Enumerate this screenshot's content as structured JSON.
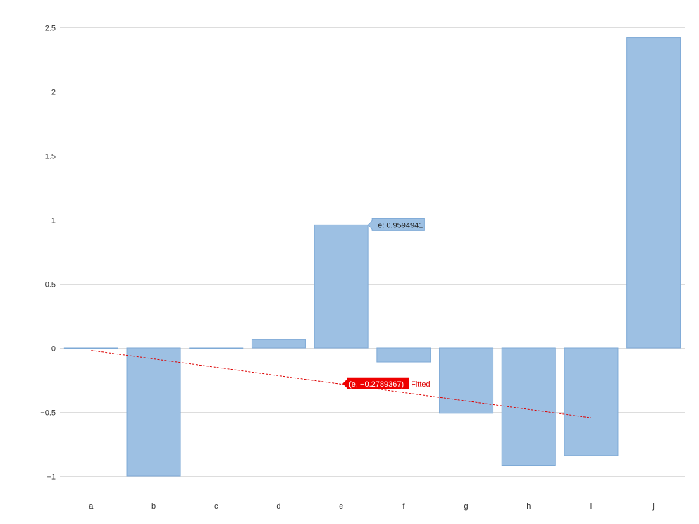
{
  "chart_data": {
    "type": "bar",
    "categories": [
      "a",
      "b",
      "c",
      "d",
      "e",
      "f",
      "g",
      "h",
      "i",
      "j"
    ],
    "values": [
      0.0,
      -1.0,
      0.0,
      0.065,
      0.9594941,
      -0.11,
      -0.51,
      -0.915,
      -0.84,
      2.42
    ],
    "ylim": [
      -1,
      2.5
    ],
    "yticks": [
      -1,
      -0.5,
      0,
      0.5,
      1,
      1.5,
      2,
      2.5
    ],
    "ytick_labels": [
      "−1",
      "−0.5",
      "0",
      "0.5",
      "1",
      "1.5",
      "2",
      "2.5"
    ],
    "grid": true,
    "colors": {
      "bar_fill": "#9dc0e3",
      "bar_stroke": "#7ea9d6",
      "fit_line": "#dd0000"
    },
    "fitted_line": {
      "start": {
        "x": "a",
        "y": -0.02
      },
      "end": {
        "x": "i",
        "y": -0.545
      },
      "style": "dashed"
    },
    "annotations": [
      {
        "target": "e",
        "y": 0.9594941,
        "text": "e: 0.9594941",
        "kind": "bar-tooltip"
      },
      {
        "target": "e",
        "y": -0.2789367,
        "text": "(e, −0.2789367)",
        "suffix": "Fitted",
        "kind": "fit-tooltip"
      }
    ]
  }
}
